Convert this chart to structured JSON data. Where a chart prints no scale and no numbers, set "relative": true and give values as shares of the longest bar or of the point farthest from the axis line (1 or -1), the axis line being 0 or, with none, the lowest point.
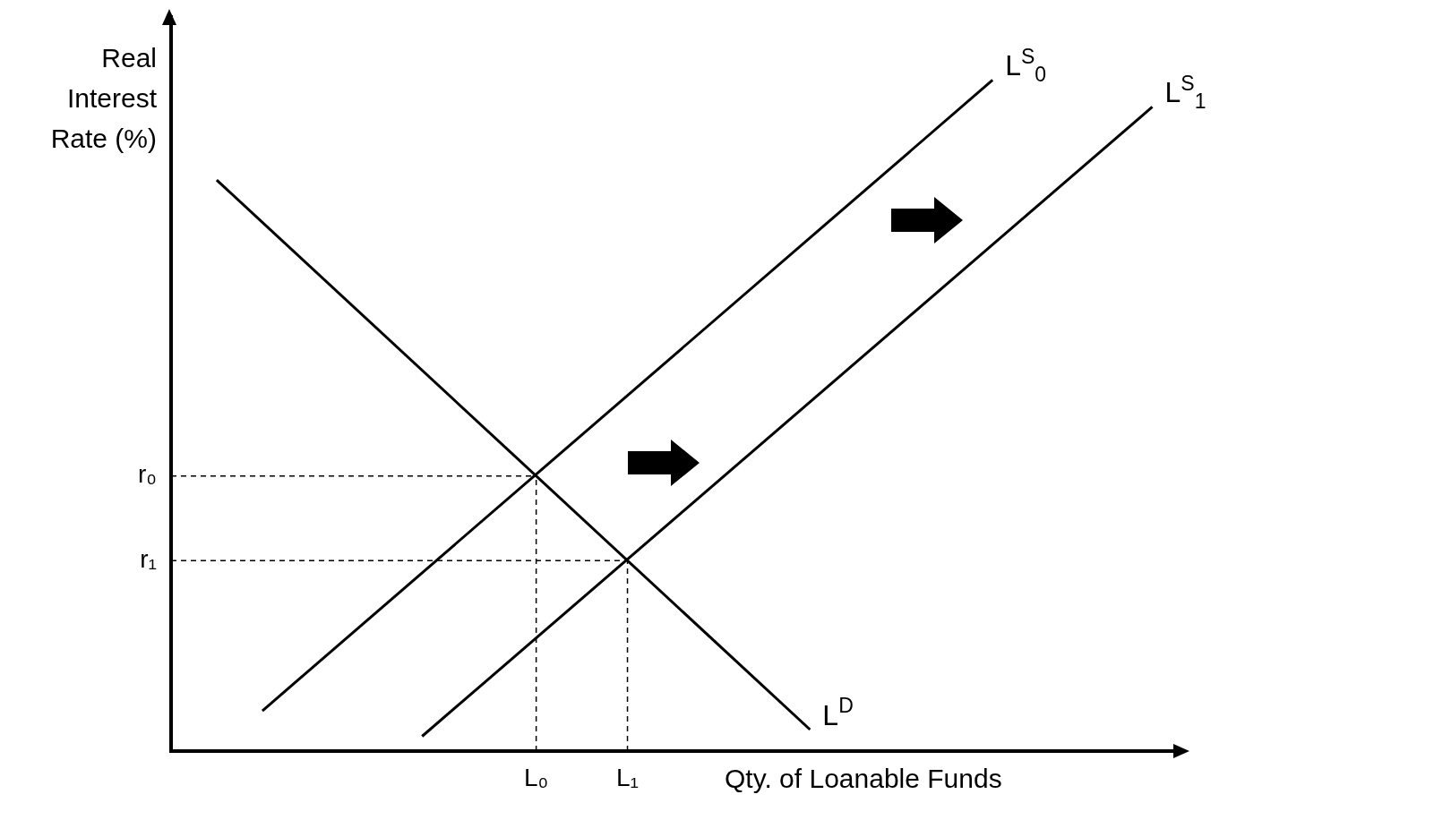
{
  "chart_data": {
    "type": "line",
    "xlabel": "Qty. of Loanable Funds",
    "ylabel": "Real\nInterest\nRate (%)",
    "relative": true,
    "legend": false,
    "marker": "none",
    "categories": [
      null,
      null,
      null,
      null,
      null,
      null,
      null,
      null,
      null,
      null,
      null,
      null,
      null,
      null,
      null,
      null,
      "L₀",
      null,
      null,
      null,
      "L₁",
      null,
      null,
      null,
      null,
      null,
      null,
      null,
      null,
      null,
      null,
      null,
      null,
      null,
      null,
      null,
      null,
      null,
      null,
      null,
      null,
      null,
      null,
      null,
      null
    ],
    "ref_lines": [
      {
        "axis": "y",
        "value": 0.41,
        "label": "r₀",
        "color": "#000000",
        "line_style": "dashed"
      },
      {
        "axis": "x",
        "value": "L₀",
        "color": "#000000",
        "line_style": "dashed"
      },
      {
        "axis": "y",
        "value": 0.284,
        "label": "r₁",
        "color": "#000000",
        "line_style": "dashed"
      },
      {
        "axis": "x",
        "value": "L₁",
        "color": "#000000",
        "line_style": "dashed"
      }
    ],
    "series": [
      {
        "name": "L$^{D}$",
        "color": "#000000",
        "line_style": "solid",
        "values": [
          null,
          null,
          0.851,
          null,
          null,
          null,
          null,
          null,
          null,
          null,
          null,
          null,
          null,
          null,
          null,
          null,
          null,
          null,
          null,
          null,
          null,
          null,
          null,
          null,
          null,
          null,
          null,
          null,
          0.032,
          null,
          null,
          null,
          null,
          null,
          null,
          null,
          null,
          null,
          null,
          null,
          null,
          null,
          null,
          null,
          null
        ]
      },
      {
        "name": "L$^{S}$$_{0}$",
        "color": "#000000",
        "line_style": "solid",
        "values": [
          null,
          null,
          null,
          null,
          0.06,
          null,
          null,
          null,
          null,
          null,
          null,
          null,
          null,
          null,
          null,
          null,
          null,
          null,
          null,
          null,
          null,
          null,
          null,
          null,
          null,
          null,
          null,
          null,
          null,
          null,
          null,
          null,
          null,
          null,
          null,
          null,
          1,
          null,
          null,
          null,
          null,
          null,
          null,
          null,
          null
        ]
      },
      {
        "name": "L$^{S}$$_{1}$",
        "color": "#000000",
        "line_style": "solid",
        "values": [
          null,
          null,
          null,
          null,
          null,
          null,
          null,
          null,
          null,
          null,
          null,
          0.022,
          null,
          null,
          null,
          null,
          null,
          null,
          null,
          null,
          null,
          null,
          null,
          null,
          null,
          null,
          null,
          null,
          null,
          null,
          null,
          null,
          null,
          null,
          null,
          null,
          null,
          null,
          null,
          null,
          null,
          null,
          null,
          0.96,
          null
        ]
      }
    ]
  }
}
